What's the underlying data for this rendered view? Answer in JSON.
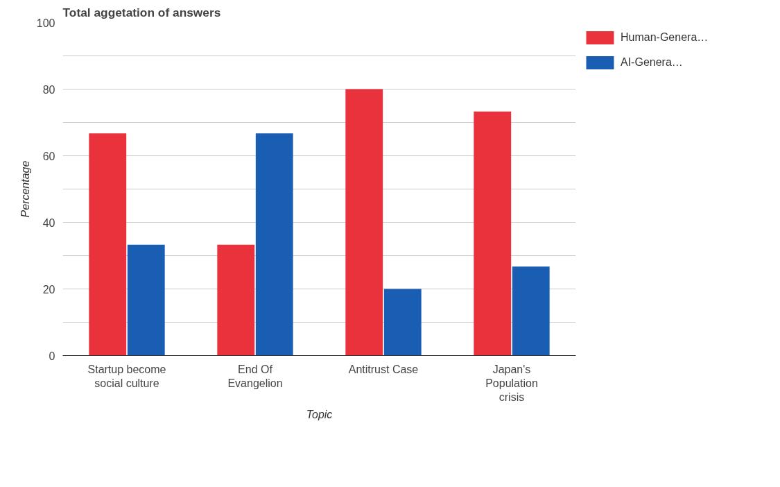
{
  "chart_data": {
    "type": "bar",
    "title": "Total aggetation of answers",
    "xlabel": "Topic",
    "ylabel": "Percentage",
    "categories": [
      "Startup become social culture",
      "End Of Evangelion",
      "Antitrust Case",
      "Japan's Population crisis"
    ],
    "series": [
      {
        "name": "Human-Genera…",
        "color": "#ea323c",
        "values": [
          66.7,
          33.3,
          80,
          73.3
        ]
      },
      {
        "name": "AI-Genera…",
        "color": "#1a5eb4",
        "values": [
          33.3,
          66.7,
          20,
          26.7
        ]
      }
    ],
    "ylim": [
      0,
      100
    ],
    "yticks": [
      0,
      {
        "value": 10,
        "label": null
      },
      20,
      {
        "value": 30,
        "label": null
      },
      40,
      {
        "value": 50,
        "label": null
      },
      60,
      {
        "value": 70,
        "label": null
      },
      80,
      {
        "value": 90,
        "label": null
      },
      100
    ],
    "grid": "y",
    "legend": "top right"
  }
}
